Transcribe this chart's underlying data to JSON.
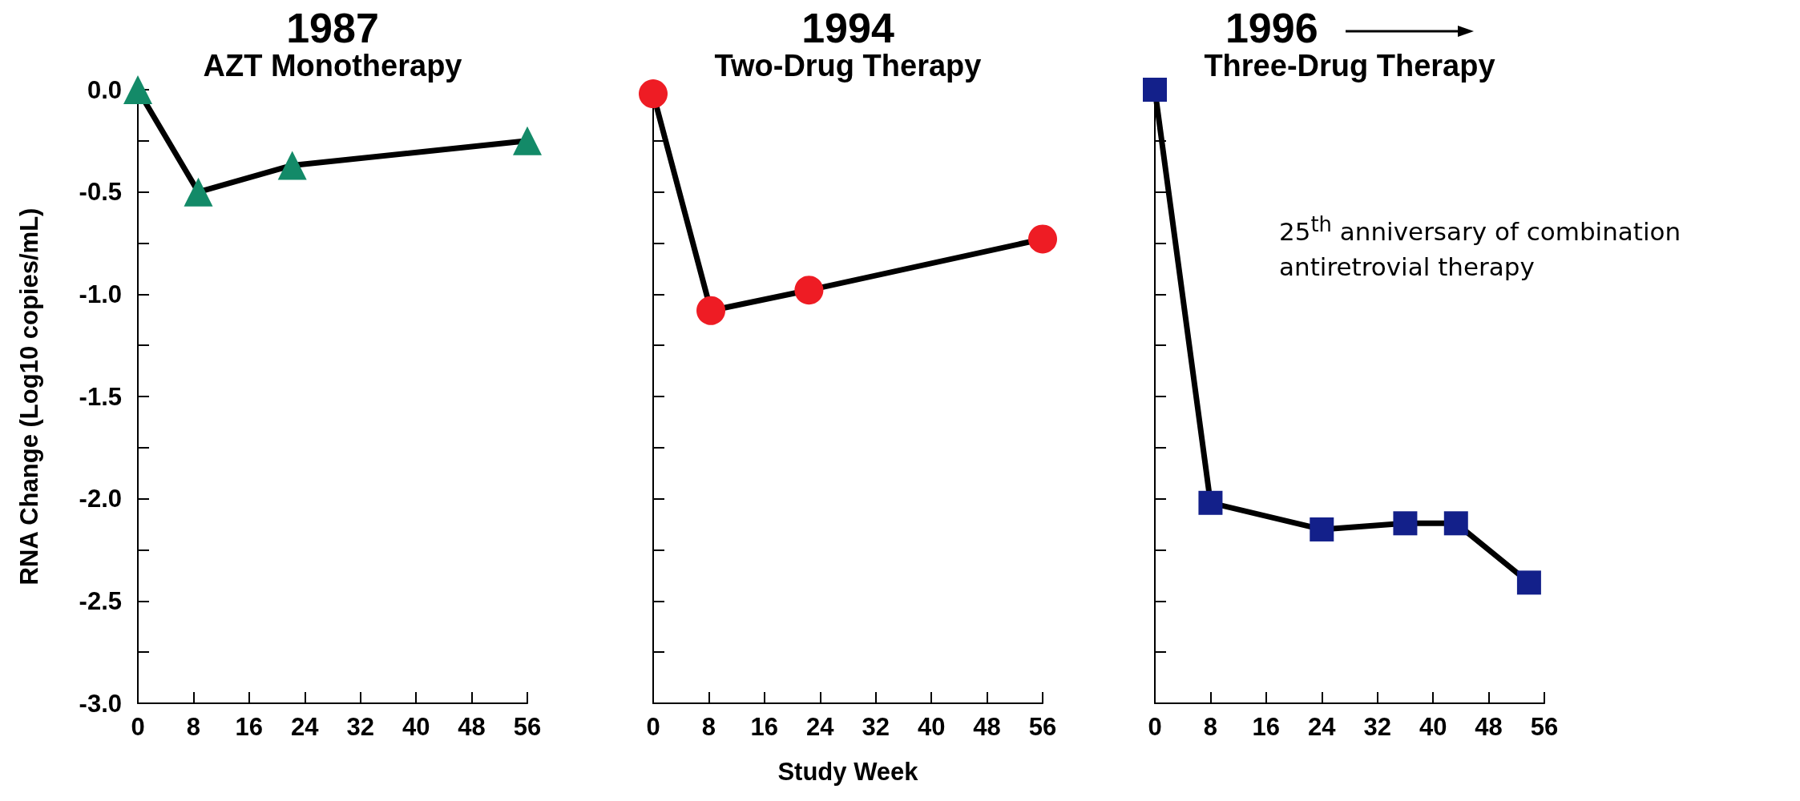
{
  "chart_data": [
    {
      "type": "line",
      "title": "1987",
      "subtitle": "AZT Monotherapy",
      "ylabel": "RNA Change (Log10 copies/mL)",
      "marker": "triangle",
      "series": [
        {
          "color": "#138a68",
          "x": [
            0,
            8.7,
            22.2,
            56
          ],
          "values": [
            0.0,
            -0.5,
            -0.37,
            -0.25
          ]
        }
      ],
      "xlim": [
        0,
        56
      ],
      "xticks": [
        0,
        8,
        16,
        24,
        32,
        40,
        48,
        56
      ],
      "ylim": [
        -3,
        0
      ],
      "yticks": [
        {
          "value": -3,
          "label": "-3.0"
        },
        {
          "value": -2.75,
          "label": null
        },
        {
          "value": -2.5,
          "label": "-2.5"
        },
        {
          "value": -2.25,
          "label": null
        },
        {
          "value": -2,
          "label": "-2.0"
        },
        {
          "value": -1.75,
          "label": null
        },
        {
          "value": -1.5,
          "label": "-1.5"
        },
        {
          "value": -1.25,
          "label": null
        },
        {
          "value": -1,
          "label": "-1.0"
        },
        {
          "value": -0.75,
          "label": null
        },
        {
          "value": -0.5,
          "label": "-0.5"
        },
        {
          "value": -0.25,
          "label": null
        },
        {
          "value": 0,
          "label": "0.0"
        }
      ]
    },
    {
      "type": "line",
      "title": "1994",
      "subtitle": "Two-Drug Therapy",
      "xlabel": "Study Week",
      "marker": "circle",
      "tick_labels": "x",
      "series": [
        {
          "color": "#ee1c24",
          "x": [
            0,
            8.3,
            22.4,
            56
          ],
          "values": [
            -0.02,
            -1.08,
            -0.98,
            -0.73
          ]
        }
      ],
      "xlim": [
        0,
        56
      ],
      "xticks": [
        0,
        8,
        16,
        24,
        32,
        40,
        48,
        56
      ],
      "ylim": [
        -3,
        0
      ],
      "yticks": [
        {
          "value": -3,
          "label": null
        },
        {
          "value": -2.75,
          "label": null
        },
        {
          "value": -2.5,
          "label": null
        },
        {
          "value": -2.25,
          "label": null
        },
        {
          "value": -2,
          "label": null
        },
        {
          "value": -1.75,
          "label": null
        },
        {
          "value": -1.5,
          "label": null
        },
        {
          "value": -1.25,
          "label": null
        },
        {
          "value": -1,
          "label": null
        },
        {
          "value": -0.75,
          "label": null
        },
        {
          "value": -0.5,
          "label": null
        },
        {
          "value": -0.25,
          "label": null
        },
        {
          "value": 0,
          "label": null
        }
      ]
    },
    {
      "type": "line",
      "title": "1996",
      "subtitle": "Three-Drug Therapy",
      "marker": "square",
      "tick_labels": "x",
      "annotations": [
        "25$^{th}$ anniversary of combination antiretrovial therapy"
      ],
      "series": [
        {
          "color": "#13208a",
          "x": [
            0,
            8,
            24,
            36,
            43.3,
            53.8
          ],
          "values": [
            0.0,
            -2.02,
            -2.15,
            -2.12,
            -2.12,
            -2.41
          ]
        }
      ],
      "xlim": [
        0,
        56
      ],
      "xticks": [
        0,
        8,
        16,
        24,
        32,
        40,
        48,
        56
      ],
      "ylim": [
        -3,
        0
      ],
      "yticks": [
        {
          "value": -3,
          "label": null
        },
        {
          "value": -2.75,
          "label": null
        },
        {
          "value": -2.5,
          "label": null
        },
        {
          "value": -2.25,
          "label": null
        },
        {
          "value": -2,
          "label": null
        },
        {
          "value": -1.75,
          "label": null
        },
        {
          "value": -1.5,
          "label": null
        },
        {
          "value": -1.25,
          "label": null
        },
        {
          "value": -1,
          "label": null
        },
        {
          "value": -0.75,
          "label": null
        },
        {
          "value": -0.5,
          "label": null
        },
        {
          "value": -0.25,
          "label": null
        },
        {
          "value": 0,
          "label": null
        }
      ]
    }
  ]
}
